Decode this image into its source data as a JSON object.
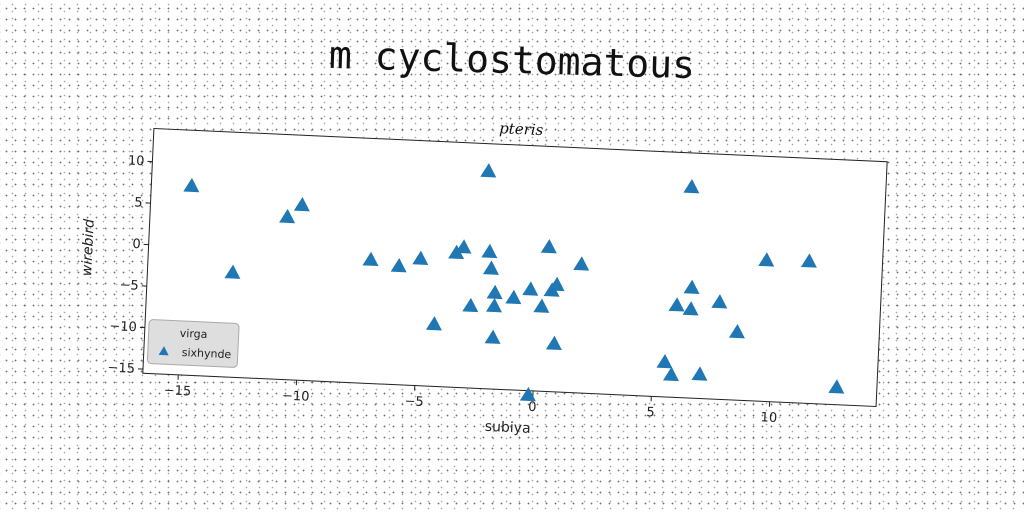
{
  "page_title": "m cyclostomatous",
  "chart_data": {
    "type": "scatter",
    "title": "pteris",
    "xlabel": "subiya",
    "ylabel": "wirebird",
    "xlim": [
      -16.5,
      14.5
    ],
    "ylim": [
      -15.5,
      14
    ],
    "xticks": [
      -15,
      -10,
      -5,
      0,
      5,
      10
    ],
    "yticks": [
      -15,
      -10,
      -5,
      0,
      5,
      10
    ],
    "xtick_labels": [
      "−15",
      "−10",
      "−5",
      "0",
      "5",
      "10"
    ],
    "ytick_labels": [
      "−15",
      "−10",
      "−5",
      "0",
      "5",
      "10"
    ],
    "grid": false,
    "legend": {
      "title": "virga",
      "placement": "bottom-left"
    },
    "series": [
      {
        "name": "sixhynde",
        "marker": "triangle",
        "color": "#1f77b4",
        "points": [
          [
            -14.8,
            7.3
          ],
          [
            -12.9,
            -2.9
          ],
          [
            -10.7,
            4.1
          ],
          [
            -10.1,
            5.6
          ],
          [
            -7.1,
            -0.6
          ],
          [
            -5.9,
            -1.2
          ],
          [
            -5.0,
            -0.2
          ],
          [
            -4.3,
            -8.0
          ],
          [
            -3.5,
            0.7
          ],
          [
            -3.2,
            1.4
          ],
          [
            -2.8,
            -5.6
          ],
          [
            -2.3,
            10.7
          ],
          [
            -2.1,
            1.0
          ],
          [
            -2.0,
            -1.0
          ],
          [
            -1.8,
            -3.9
          ],
          [
            -1.8,
            -5.5
          ],
          [
            -1.8,
            -9.3
          ],
          [
            -1.0,
            -4.4
          ],
          [
            -0.3,
            -3.3
          ],
          [
            -0.2,
            -16.0
          ],
          [
            0.2,
            -5.3
          ],
          [
            0.4,
            1.9
          ],
          [
            0.6,
            -3.3
          ],
          [
            0.8,
            -2.6
          ],
          [
            0.8,
            -9.7
          ],
          [
            1.8,
            0.0
          ],
          [
            5.5,
            -11.3
          ],
          [
            5.8,
            -12.8
          ],
          [
            5.9,
            -4.4
          ],
          [
            6.3,
            9.9
          ],
          [
            6.5,
            -4.8
          ],
          [
            6.5,
            -2.2
          ],
          [
            7.0,
            -12.6
          ],
          [
            7.7,
            -3.8
          ],
          [
            8.5,
            -7.3
          ],
          [
            9.6,
            1.5
          ],
          [
            11.4,
            1.6
          ],
          [
            12.8,
            -13.4
          ]
        ]
      }
    ]
  }
}
